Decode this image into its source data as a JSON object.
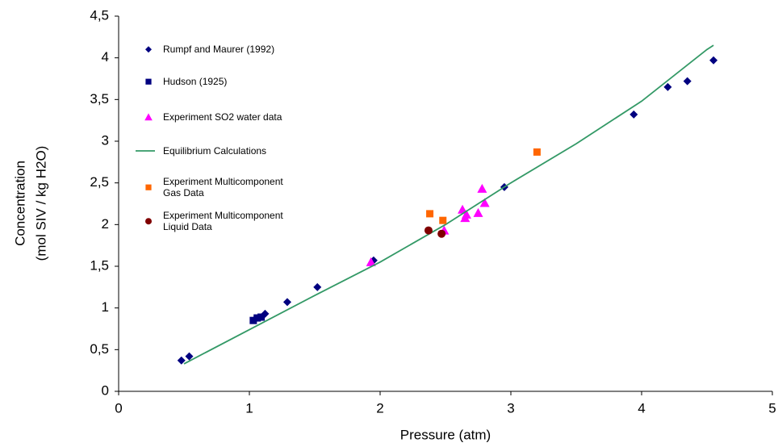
{
  "chart_data": {
    "type": "scatter",
    "xlabel": "Pressure (atm)",
    "ylabel": [
      "Concentration",
      "(mol SIV / kg H2O)"
    ],
    "xlim": [
      0,
      5
    ],
    "xticks": [
      0,
      1,
      2,
      3,
      4,
      5
    ],
    "ylim": [
      0,
      4.5
    ],
    "yticks": [
      0,
      {
        "value": 0.5,
        "label": "0,5"
      },
      1,
      {
        "value": 1.5,
        "label": "1,5"
      },
      2,
      {
        "value": 2.5,
        "label": "2,5"
      },
      3,
      {
        "value": 3.5,
        "label": "3,5"
      },
      4,
      {
        "value": 4.5,
        "label": "4,5"
      }
    ],
    "grid": false,
    "legend": "upper-left",
    "series": [
      {
        "name": "Rumpf and Maurer (1992)",
        "color": "#000080",
        "marker": "diamond",
        "x": [
          0.48,
          0.54,
          1.04,
          1.12,
          1.29,
          1.52,
          1.95,
          2.95,
          3.94,
          4.2,
          4.35,
          4.55
        ],
        "y": [
          0.37,
          0.42,
          0.86,
          0.93,
          1.07,
          1.25,
          1.57,
          2.45,
          3.32,
          3.65,
          3.72,
          3.97
        ]
      },
      {
        "name": "Hudson (1925)",
        "color": "#000080",
        "marker": "square",
        "x": [
          1.03,
          1.06,
          1.09
        ],
        "y": [
          0.85,
          0.88,
          0.89
        ]
      },
      {
        "name": "Experiment SO2 water data",
        "color": "#FF00FF",
        "marker": "triangle",
        "x": [
          1.93,
          2.49,
          2.63,
          2.65,
          2.66,
          2.75,
          2.78,
          2.8
        ],
        "y": [
          1.55,
          1.93,
          2.18,
          2.08,
          2.12,
          2.14,
          2.43,
          2.26
        ]
      },
      {
        "name": "Equilibrium Calculations",
        "color": "#339966",
        "marker": "line",
        "x": [
          0.5,
          1,
          1.5,
          2,
          2.5,
          3,
          3.5,
          4,
          4.5,
          4.55
        ],
        "y": [
          0.33,
          0.74,
          1.15,
          1.55,
          2.0,
          2.5,
          2.97,
          3.48,
          4.1,
          4.15
        ]
      },
      {
        "name": "Experiment Multicomponent Gas Data",
        "color": "#FF6600",
        "marker": "square",
        "x": [
          2.38,
          2.48,
          3.2
        ],
        "y": [
          2.13,
          2.05,
          2.87
        ]
      },
      {
        "name": "Experiment Multicomponent Liquid Data",
        "color": "#800000",
        "marker": "circle",
        "x": [
          2.37,
          2.47
        ],
        "y": [
          1.93,
          1.89
        ]
      }
    ]
  }
}
